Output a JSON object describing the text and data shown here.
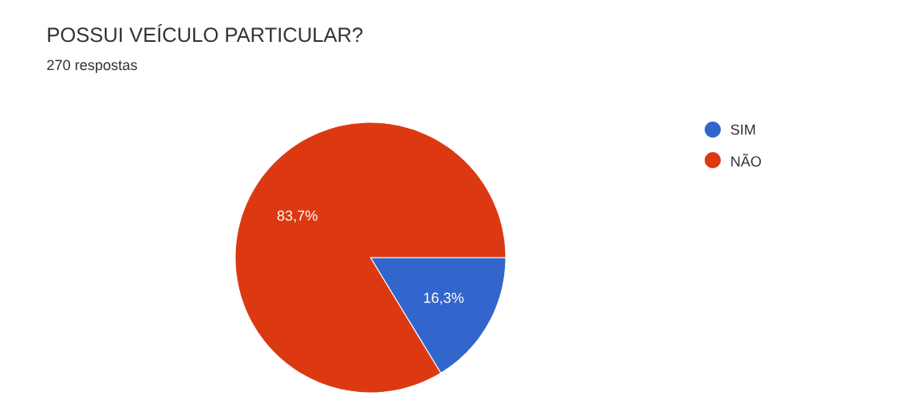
{
  "chart_data": {
    "type": "pie",
    "title": "POSSUI VEÍCULO PARTICULAR?",
    "subtitle": "270 respostas",
    "categories": [
      "SIM",
      "NÃO"
    ],
    "values": [
      16.3,
      83.7
    ],
    "colors": [
      "#3366cc",
      "#dc3912"
    ],
    "value_labels": [
      "16,3%",
      "83,7%"
    ],
    "legend": "top right"
  }
}
